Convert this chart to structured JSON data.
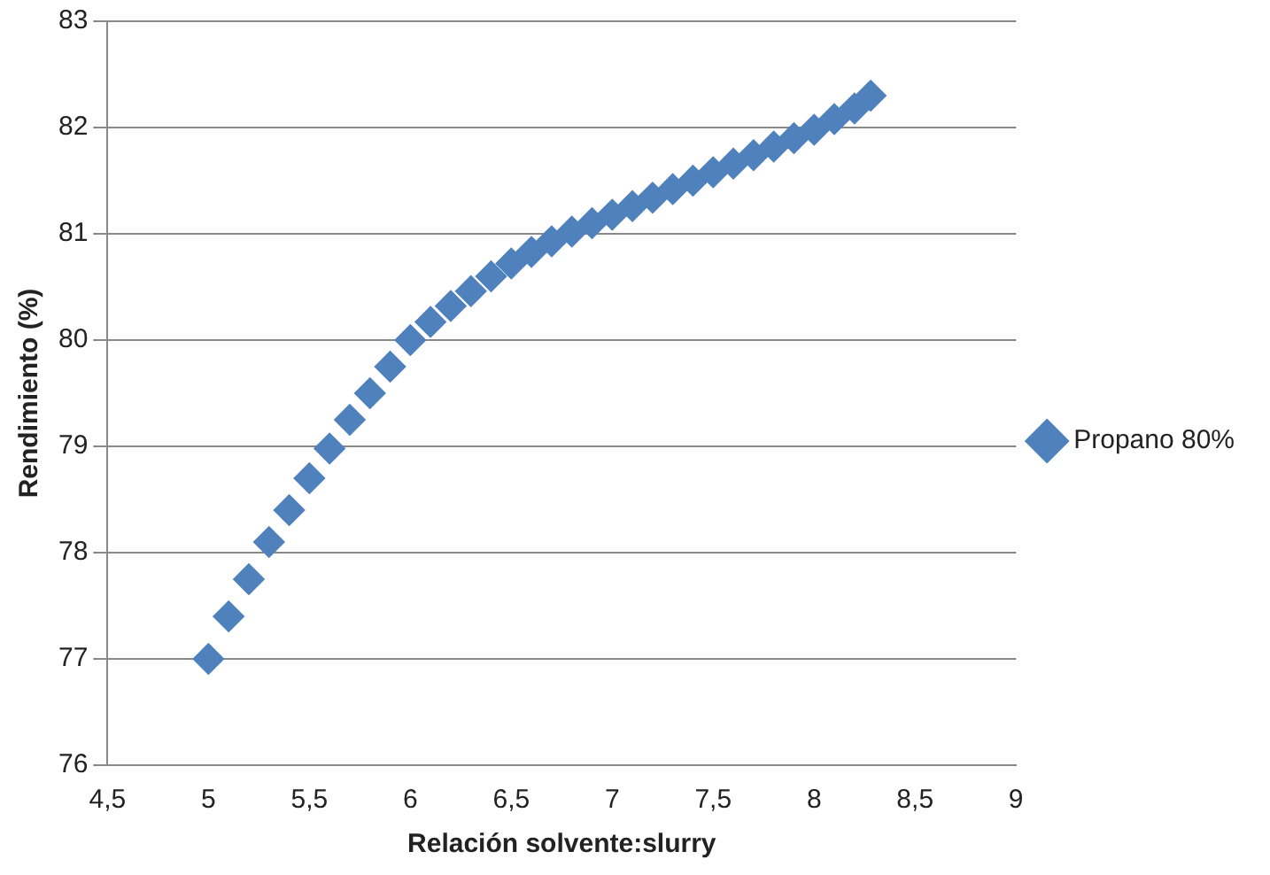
{
  "chart_data": {
    "type": "scatter",
    "xlabel": "Relación solvente:slurry",
    "ylabel": "Rendimiento (%)",
    "xlim": [
      4.5,
      9
    ],
    "xticks": [
      {
        "value": 4.5,
        "label": "4,5"
      },
      5,
      {
        "value": 5.5,
        "label": "5,5"
      },
      6,
      {
        "value": 6.5,
        "label": "6,5"
      },
      7,
      {
        "value": 7.5,
        "label": "7,5"
      },
      8,
      {
        "value": 8.5,
        "label": "8,5"
      },
      9
    ],
    "ylim": [
      76,
      83
    ],
    "yticks": [
      76,
      77,
      78,
      79,
      80,
      81,
      82,
      83
    ],
    "grid": "y",
    "legend": "right",
    "marker": "diamond",
    "series": [
      {
        "name": "Propano 80%",
        "color": "#4f81bd",
        "x": [
          5,
          5.1,
          5.2,
          5.3,
          5.4,
          5.5,
          5.6,
          5.7,
          5.8,
          5.9,
          6,
          6.1,
          6.2,
          6.3,
          6.4,
          6.5,
          6.6,
          6.7,
          6.8,
          6.9,
          7,
          7.1,
          7.2,
          7.3,
          7.4,
          7.5,
          7.6,
          7.7,
          7.8,
          7.9,
          8,
          8.1,
          8.2,
          8.28
        ],
        "values": [
          77,
          77.4,
          77.75,
          78.1,
          78.4,
          78.7,
          78.98,
          79.25,
          79.5,
          79.75,
          80,
          80.17,
          80.32,
          80.46,
          80.6,
          80.72,
          80.83,
          80.93,
          81.02,
          81.1,
          81.18,
          81.26,
          81.34,
          81.42,
          81.5,
          81.58,
          81.66,
          81.74,
          81.82,
          81.9,
          81.98,
          82.08,
          82.18,
          82.3
        ]
      }
    ]
  }
}
